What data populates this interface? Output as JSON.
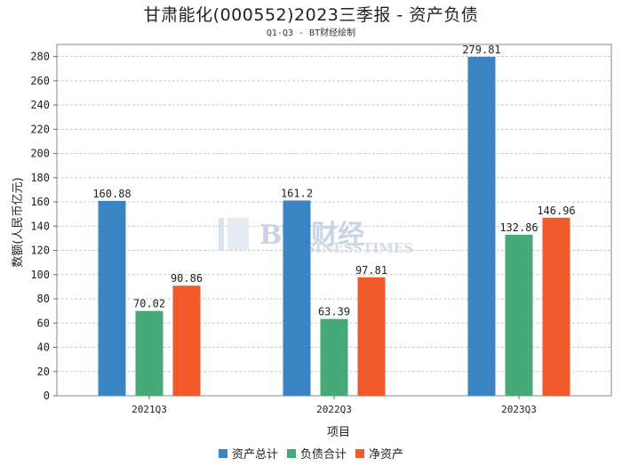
{
  "chart_data": {
    "type": "bar",
    "title": "甘肃能化(000552)2023三季报 - 资产负债",
    "subtitle": "Q1-Q3 - BT财经绘制",
    "xlabel": "项目",
    "ylabel": "数额(人民币亿元)",
    "ylim": [
      0,
      290
    ],
    "yticks": [
      0,
      20,
      40,
      60,
      80,
      100,
      120,
      140,
      160,
      180,
      200,
      220,
      240,
      260,
      280
    ],
    "grid": true,
    "legend_position": "bottom-center",
    "categories": [
      "2021Q3",
      "2022Q3",
      "2023Q3"
    ],
    "series": [
      {
        "name": "资产总计",
        "color": "#3a84c4",
        "values": [
          160.88,
          161.2,
          279.81
        ],
        "labels": [
          "160.88",
          "161.2",
          "279.81"
        ]
      },
      {
        "name": "负债合计",
        "color": "#46aa78",
        "values": [
          70.02,
          63.39,
          132.86
        ],
        "labels": [
          "70.02",
          "63.39",
          "132.86"
        ]
      },
      {
        "name": "净资产",
        "color": "#f15a2b",
        "values": [
          90.86,
          97.81,
          146.96
        ],
        "labels": [
          "90.86",
          "97.81",
          "146.96"
        ]
      }
    ]
  },
  "watermark": {
    "logo_text": "BT 财经",
    "sub_text": "BUSINESSTIMES"
  }
}
